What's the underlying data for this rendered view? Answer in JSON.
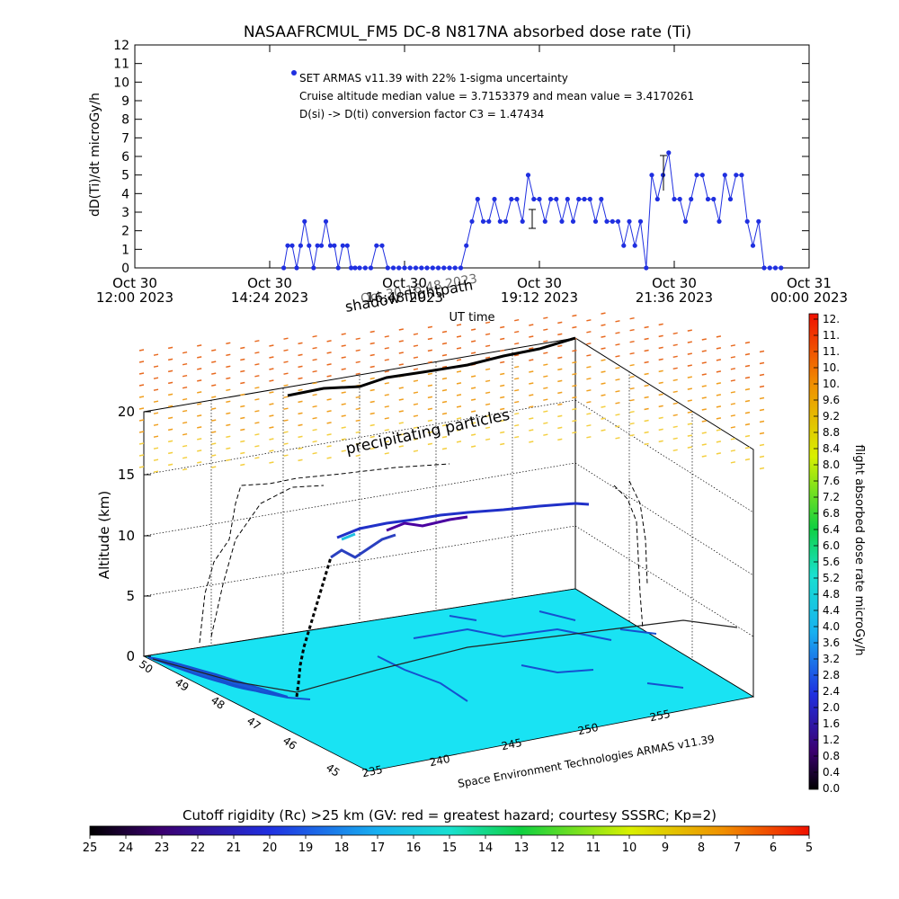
{
  "top_chart": {
    "title": "NASAAFRCMUL_FM5 DC-8   N817NA absorbed dose rate (Ti)",
    "ylabel": "dD(Ti)/dt microGy/h",
    "xlabel": "UT time",
    "legend": {
      "series_name": "SET ARMAS v11.39 with 22% 1-sigma uncertainty",
      "line2": "Cruise altitude median value = 3.7153379 and mean value = 3.4170261",
      "line3": "D(si) -> D(ti) conversion factor C3 = 1.47434"
    },
    "x_tick_labels": [
      [
        "Oct 30",
        "12:00 2023"
      ],
      [
        "Oct 30",
        "14:24 2023"
      ],
      [
        "Oct 30",
        "16:48 2023"
      ],
      [
        "Oct 30",
        "19:12 2023"
      ],
      [
        "Oct 30",
        "21:36 2023"
      ],
      [
        "Oct 31",
        "00:00 2023"
      ]
    ],
    "y_tick_labels": [
      "0",
      "1",
      "2",
      "3",
      "4",
      "5",
      "6",
      "7",
      "8",
      "9",
      "10",
      "11",
      "12"
    ],
    "color": "#1f2fe0"
  },
  "chart_data": {
    "type": "scatter",
    "title": "NASAAFRCMUL_FM5 DC-8   N817NA absorbed dose rate (Ti)",
    "xlabel": "UT time",
    "ylabel": "dD(Ti)/dt microGy/h",
    "xlim_hours": [
      12.0,
      24.0
    ],
    "ylim": [
      0,
      12
    ],
    "series": [
      {
        "name": "SET ARMAS v11.39 with 22% 1-sigma uncertainty",
        "x_hours": [
          14.65,
          14.72,
          14.8,
          14.88,
          14.95,
          15.02,
          15.1,
          15.18,
          15.25,
          15.32,
          15.4,
          15.48,
          15.55,
          15.62,
          15.7,
          15.78,
          15.85,
          15.92,
          16.0,
          16.1,
          16.2,
          16.3,
          16.4,
          16.5,
          16.6,
          16.7,
          16.8,
          16.9,
          17.0,
          17.1,
          17.2,
          17.3,
          17.4,
          17.5,
          17.6,
          17.7,
          17.8,
          17.9,
          18.0,
          18.1,
          18.2,
          18.3,
          18.4,
          18.5,
          18.6,
          18.7,
          18.8,
          18.9,
          19.0,
          19.1,
          19.2,
          19.3,
          19.4,
          19.5,
          19.6,
          19.7,
          19.8,
          19.9,
          20.0,
          20.1,
          20.2,
          20.3,
          20.4,
          20.5,
          20.6,
          20.7,
          20.8,
          20.9,
          21.0,
          21.1,
          21.2,
          21.3,
          21.4,
          21.5,
          21.6,
          21.7,
          21.8,
          21.9,
          22.0,
          22.1,
          22.2,
          22.3,
          22.4,
          22.5,
          22.6,
          22.7,
          22.8,
          22.9,
          23.0,
          23.1,
          23.2,
          23.3,
          23.4,
          23.5
        ],
        "values": [
          0,
          1.2,
          1.2,
          0,
          1.2,
          2.5,
          1.2,
          0,
          1.2,
          1.2,
          2.5,
          1.2,
          1.2,
          0,
          1.2,
          1.2,
          0,
          0,
          0,
          0,
          0,
          1.2,
          1.2,
          0,
          0,
          0,
          0,
          0,
          0,
          0,
          0,
          0,
          0,
          0,
          0,
          0,
          0,
          1.2,
          2.5,
          3.7,
          2.5,
          2.5,
          3.7,
          2.5,
          2.5,
          3.7,
          3.7,
          2.5,
          5.0,
          3.7,
          3.7,
          2.5,
          3.7,
          3.7,
          2.5,
          3.7,
          2.5,
          3.7,
          3.7,
          3.7,
          2.5,
          3.7,
          2.5,
          2.5,
          2.5,
          1.2,
          2.5,
          1.2,
          2.5,
          0,
          5.0,
          3.7,
          5.0,
          6.2,
          3.7,
          3.7,
          2.5,
          3.7,
          5.0,
          5.0,
          3.7,
          3.7,
          2.5,
          5.0,
          3.7,
          5.0,
          5.0,
          2.5,
          1.2,
          2.5,
          0,
          0,
          0,
          0
        ],
        "uncertainty": "22% 1-sigma"
      }
    ]
  },
  "panel3d": {
    "shadow_label": "shadow flightpath",
    "shadow_overlap": "Oct 30 16:48 2023",
    "precip_label": "precipitating particles",
    "zlabel": "Altitude (km)",
    "z_tick_labels": [
      "0",
      "5",
      "10",
      "15",
      "20"
    ],
    "lat_tick_labels": [
      "45",
      "46",
      "47",
      "48",
      "49",
      "50"
    ],
    "lon_tick_labels": [
      "235",
      "240",
      "245",
      "250",
      "255"
    ],
    "credit": "Space Environment Technologies ARMAS v11.39",
    "map_color": "#19e3f3"
  },
  "colorbar": {
    "label": "flight absorbed dose rate microGy/h",
    "tick_labels": [
      "12.",
      "11.",
      "11.",
      "10.",
      "10.",
      "9.6",
      "9.2",
      "8.8",
      "8.4",
      "8.0",
      "7.6",
      "7.2",
      "6.8",
      "6.4",
      "6.0",
      "5.6",
      "5.2",
      "4.8",
      "4.4",
      "4.0",
      "3.6",
      "3.2",
      "2.8",
      "2.4",
      "2.0",
      "1.6",
      "1.2",
      "0.8",
      "0.4",
      "0.0"
    ]
  },
  "bottom_colorbar": {
    "label": "Cutoff rigidity (Rc) >25 km (GV: red = greatest hazard; courtesy SSSRC; Kp=2)",
    "tick_labels": [
      "25",
      "24",
      "23",
      "22",
      "21",
      "20",
      "19",
      "18",
      "17",
      "16",
      "15",
      "14",
      "13",
      "12",
      "11",
      "10",
      "9",
      "8",
      "7",
      "6",
      "5"
    ]
  }
}
